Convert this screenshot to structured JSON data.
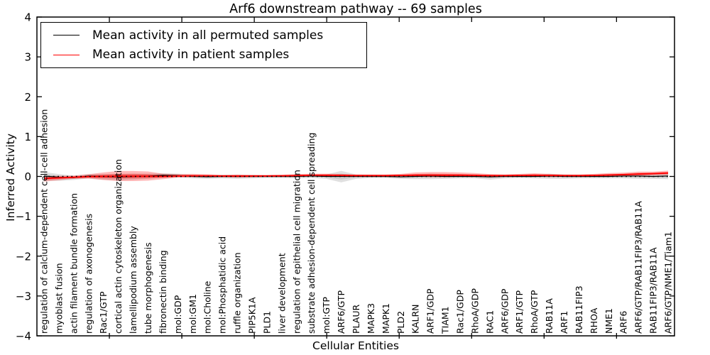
{
  "title": "Arf6 downstream pathway -- 69 samples",
  "legend": {
    "items": [
      {
        "label": "Mean activity in all permuted samples",
        "color": "#000000"
      },
      {
        "label": "Mean activity in patient samples",
        "color": "#ff0000"
      }
    ]
  },
  "colors": {
    "permuted_line": "#000000",
    "patient_line": "#ff0000",
    "permuted_band": "#999999",
    "patient_band": "#ff0000",
    "frame": "#000000"
  },
  "chart_data": {
    "type": "line",
    "title": "Arf6 downstream pathway -- 69 samples",
    "xlabel": "Cellular Entities",
    "ylabel": "Inferred Activity",
    "ylim": [
      -4,
      4
    ],
    "yticks": [
      4,
      3,
      2,
      1,
      0,
      -1,
      -2,
      -3,
      -4
    ],
    "grid": false,
    "legend_position": "upper left",
    "zero_reference_line": true,
    "categories": [
      "regulation of calcium-dependent cell-cell adhesion",
      "myoblast fusion",
      "actin filament bundle formation",
      "regulation of axonogenesis",
      "Rac1/GTP",
      "cortical actin cytoskeleton organization",
      "lamellipodium assembly",
      "tube morphogenesis",
      "fibronectin binding",
      "mol:GDP",
      "mol:GM1",
      "mol:Choline",
      "mol:Phosphatidic acid",
      "ruffle organization",
      "PIP5K1A",
      "PLD1",
      "liver development",
      "regulation of epithelial cell migration",
      "substrate adhesion-dependent cell spreading",
      "mol:GTP",
      "ARF6/GTP",
      "PLAUR",
      "MAPK3",
      "MAPK1",
      "PLD2",
      "KALRN",
      "ARF1/GDP",
      "TIAM1",
      "Rac1/GDP",
      "RhoA/GDP",
      "RAC1",
      "ARF6/GDP",
      "ARF1/GTP",
      "RhoA/GTP",
      "RAB11A",
      "ARF1",
      "RAB11FIP3",
      "RHOA",
      "NME1",
      "ARF6",
      "ARF6/GTP/RAB11FIP3/RAB11A",
      "RAB11FIP3/RAB11A",
      "ARF6/GTP/NME1/Tiam1"
    ],
    "series": [
      {
        "name": "Mean activity in all permuted samples",
        "color": "#000000",
        "values": [
          0.01,
          -0.02,
          -0.03,
          0.01,
          0,
          -0.01,
          0,
          0.01,
          0.03,
          0.02,
          0,
          -0.01,
          0,
          0,
          0,
          0,
          0,
          0,
          0.01,
          0,
          0,
          0,
          0,
          0,
          -0.01,
          0,
          0.01,
          0,
          0,
          0,
          -0.01,
          0,
          0,
          0,
          0.01,
          0,
          0,
          0,
          0,
          0.01,
          0.01,
          0,
          0.01
        ],
        "band_upper": [
          0.1,
          0.08,
          0.05,
          0.05,
          0.06,
          0.07,
          0.07,
          0.06,
          0.05,
          0.05,
          0.04,
          0.04,
          0.04,
          0.04,
          0.04,
          0.03,
          0.03,
          0.04,
          0.04,
          0.05,
          0.14,
          0.05,
          0.04,
          0.03,
          0.04,
          0.05,
          0.06,
          0.05,
          0.04,
          0.04,
          0.05,
          0.04,
          0.04,
          0.04,
          0.06,
          0.05,
          0.04,
          0.04,
          0.04,
          0.05,
          0.06,
          0.06,
          0.07
        ],
        "band_lower": [
          0.12,
          0.09,
          0.06,
          0.06,
          0.08,
          0.09,
          0.08,
          0.07,
          0.06,
          0.05,
          0.05,
          0.05,
          0.05,
          0.06,
          0.05,
          0.04,
          0.04,
          0.05,
          0.05,
          0.06,
          0.15,
          0.06,
          0.04,
          0.04,
          0.05,
          0.07,
          0.08,
          0.06,
          0.05,
          0.05,
          0.07,
          0.05,
          0.04,
          0.05,
          0.07,
          0.06,
          0.05,
          0.05,
          0.05,
          0.06,
          0.07,
          0.06,
          0.08
        ]
      },
      {
        "name": "Mean activity in patient samples",
        "color": "#ff0000",
        "values": [
          -0.05,
          -0.035,
          -0.02,
          -0.005,
          0,
          0.005,
          0.005,
          0.005,
          0,
          0.01,
          0.015,
          0.015,
          0.01,
          0.01,
          0.01,
          0.01,
          0.015,
          0.02,
          0.03,
          0.03,
          0.025,
          0.02,
          0.02,
          0.02,
          0.025,
          0.03,
          0.03,
          0.03,
          0.03,
          0.025,
          0.02,
          0.02,
          0.025,
          0.03,
          0.025,
          0.02,
          0.02,
          0.025,
          0.035,
          0.045,
          0.06,
          0.07,
          0.085
        ],
        "band_upper": [
          0.06,
          0.05,
          0.04,
          0.06,
          0.1,
          0.13,
          0.13,
          0.12,
          0.07,
          0.05,
          0.05,
          0.04,
          0.03,
          0.04,
          0.03,
          0.03,
          0.03,
          0.04,
          0.04,
          0.04,
          0.04,
          0.03,
          0.03,
          0.03,
          0.04,
          0.07,
          0.08,
          0.08,
          0.07,
          0.06,
          0.04,
          0.03,
          0.04,
          0.05,
          0.04,
          0.03,
          0.03,
          0.04,
          0.05,
          0.05,
          0.06,
          0.05,
          0.06
        ],
        "band_lower": [
          0.08,
          0.06,
          0.04,
          0.05,
          0.09,
          0.12,
          0.12,
          0.11,
          0.07,
          0.04,
          0.03,
          0.03,
          0.03,
          0.04,
          0.03,
          0.02,
          0.02,
          0.03,
          0.03,
          0.03,
          0.03,
          0.03,
          0.02,
          0.02,
          0.03,
          0.04,
          0.05,
          0.05,
          0.04,
          0.04,
          0.03,
          0.03,
          0.03,
          0.04,
          0.04,
          0.03,
          0.02,
          0.03,
          0.03,
          0.04,
          0.05,
          0.04,
          0.05
        ]
      }
    ]
  }
}
